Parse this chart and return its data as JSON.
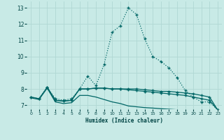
{
  "xlabel": "Humidex (Indice chaleur)",
  "bg_color": "#c8eae6",
  "grid_color": "#b0d8d4",
  "line_color": "#006666",
  "xlim": [
    -0.5,
    23.5
  ],
  "ylim": [
    6.75,
    13.4
  ],
  "xticks": [
    0,
    1,
    2,
    3,
    4,
    5,
    6,
    7,
    8,
    9,
    10,
    11,
    12,
    13,
    14,
    15,
    16,
    17,
    18,
    19,
    20,
    21,
    22,
    23
  ],
  "yticks": [
    7,
    8,
    9,
    10,
    11,
    12,
    13
  ],
  "line1_x": [
    0,
    1,
    2,
    3,
    4,
    5,
    6,
    7,
    8,
    9,
    10,
    11,
    12,
    13,
    14,
    15,
    16,
    17,
    18,
    19,
    20,
    21,
    22,
    23
  ],
  "line1_y": [
    7.5,
    7.4,
    8.1,
    7.4,
    7.3,
    7.4,
    8.0,
    8.8,
    8.2,
    9.5,
    11.5,
    11.9,
    13.0,
    12.6,
    11.1,
    10.0,
    9.7,
    9.3,
    8.7,
    7.9,
    7.5,
    7.2,
    7.2,
    6.7
  ],
  "line2_x": [
    0,
    1,
    2,
    3,
    4,
    5,
    6,
    7,
    8,
    9,
    10,
    11,
    12,
    13,
    14,
    15,
    16,
    17,
    18,
    19,
    20,
    21,
    22,
    23
  ],
  "line2_y": [
    7.5,
    7.4,
    8.1,
    7.3,
    7.25,
    7.3,
    8.0,
    8.0,
    8.05,
    8.05,
    8.0,
    8.0,
    8.0,
    8.0,
    7.95,
    7.9,
    7.85,
    7.85,
    7.8,
    7.75,
    7.7,
    7.6,
    7.5,
    6.7
  ],
  "line3_x": [
    2,
    3,
    4,
    5,
    6,
    7,
    8,
    9,
    10,
    11,
    12,
    13,
    14,
    15,
    16,
    17,
    18,
    19,
    20,
    21,
    22,
    23
  ],
  "line3_y": [
    8.1,
    7.3,
    7.25,
    7.3,
    8.0,
    8.0,
    8.05,
    8.05,
    8.0,
    8.0,
    7.95,
    7.9,
    7.85,
    7.8,
    7.75,
    7.7,
    7.65,
    7.6,
    7.5,
    7.4,
    7.3,
    6.7
  ],
  "line4_x": [
    0,
    1,
    2,
    3,
    4,
    5,
    6,
    7,
    8,
    9,
    10,
    11,
    12,
    13,
    14,
    15,
    16,
    17,
    18,
    19,
    20,
    21,
    22,
    23
  ],
  "line4_y": [
    7.45,
    7.35,
    8.05,
    7.2,
    7.1,
    7.15,
    7.6,
    7.6,
    7.5,
    7.35,
    7.2,
    7.1,
    6.95,
    6.9,
    6.85,
    6.82,
    6.78,
    6.75,
    6.72,
    6.7,
    6.68,
    6.65,
    6.62,
    6.6
  ]
}
